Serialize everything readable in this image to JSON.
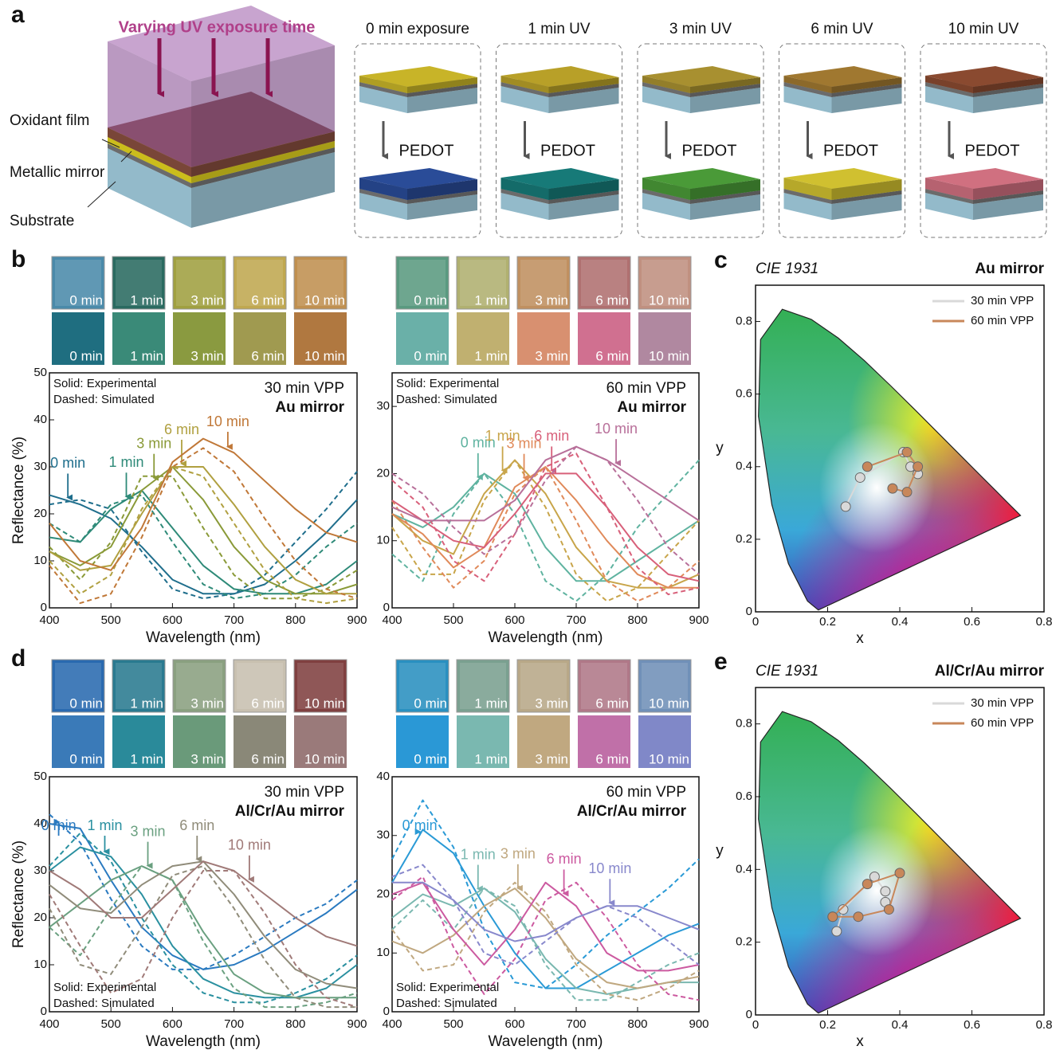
{
  "panel_labels": [
    "a",
    "b",
    "c",
    "d",
    "e"
  ],
  "schematic": {
    "uv_label": "Varying UV exposure time",
    "layer_labels": [
      "Oxidant film",
      "Metallic mirror",
      "Substrate"
    ],
    "steps": [
      {
        "title": "0 min exposure",
        "oxidant_color": "#c8b428",
        "product": "PEDOT",
        "product_color": "#2a4c98"
      },
      {
        "title": "1 min UV",
        "oxidant_color": "#b8a028",
        "product": "PEDOT",
        "product_color": "#177a78"
      },
      {
        "title": "3 min UV",
        "oxidant_color": "#a89030",
        "product": "PEDOT",
        "product_color": "#4a9a38"
      },
      {
        "title": "6 min UV",
        "oxidant_color": "#a07830",
        "product": "PEDOT",
        "product_color": "#d0c030"
      },
      {
        "title": "10 min UV",
        "oxidant_color": "#8a4a30",
        "product": "PEDOT",
        "product_color": "#d07080"
      }
    ]
  },
  "swatch_groups": [
    {
      "labels": [
        "0 min",
        "1 min",
        "3 min",
        "6 min",
        "10 min"
      ],
      "photo_colors": [
        "#4a8aaa",
        "#2a6a60",
        "#a0a040",
        "#c0a850",
        "#c09050"
      ],
      "sim_colors": [
        "#1f6e80",
        "#3a8a78",
        "#8a9a40",
        "#a09a50",
        "#b07840"
      ]
    },
    {
      "labels": [
        "0 min",
        "1 min",
        "3 min",
        "6 min",
        "10 min"
      ],
      "photo_colors": [
        "#5a9a80",
        "#b0b070",
        "#c09060",
        "#b07070",
        "#c09080"
      ],
      "sim_colors": [
        "#6ab0a8",
        "#c0b070",
        "#d89070",
        "#d07090",
        "#b088a0"
      ]
    },
    {
      "labels": [
        "0 min",
        "1 min",
        "3 min",
        "6 min",
        "10 min"
      ],
      "photo_colors": [
        "#2a6ab0",
        "#2a7a90",
        "#8aa080",
        "#c8c0b0",
        "#804040"
      ],
      "sim_colors": [
        "#3a7ab8",
        "#2a8a9a",
        "#6a9a7a",
        "#8a8878",
        "#9a7a7a"
      ]
    },
    {
      "labels": [
        "0 min",
        "1 min",
        "3 min",
        "6 min",
        "10 min"
      ],
      "photo_colors": [
        "#2a90c0",
        "#7aa090",
        "#b8a888",
        "#b07888",
        "#7090b8"
      ],
      "sim_colors": [
        "#2a98d6",
        "#7ab8b0",
        "#c0a880",
        "#c070a8",
        "#8088c8"
      ]
    }
  ],
  "chart_data": [
    {
      "type": "line",
      "title": "30 min VPP",
      "subtitle": "Au mirror",
      "notes": [
        "Solid: Experimental",
        "Dashed: Simulated"
      ],
      "xlabel": "Wavelength (nm)",
      "ylabel": "Reflectance (%)",
      "x": [
        400,
        450,
        500,
        550,
        600,
        650,
        700,
        750,
        800,
        850,
        900
      ],
      "xlim": [
        400,
        900
      ],
      "xticks": [
        400,
        500,
        600,
        700,
        800,
        900
      ],
      "ylim": [
        0,
        50
      ],
      "yticks": [
        0,
        10,
        20,
        30,
        40,
        50
      ],
      "series": [
        {
          "name": "0 min",
          "color": "#1f6e8c",
          "arrow_x": 430,
          "values": [
            24,
            22,
            19,
            13,
            6,
            3,
            3,
            5,
            10,
            16,
            23
          ],
          "simulated": [
            22,
            23,
            21,
            12,
            4,
            2,
            3,
            7,
            14,
            21,
            29
          ]
        },
        {
          "name": "1 min",
          "color": "#2e8a78",
          "arrow_x": 525,
          "values": [
            15,
            14,
            21,
            25,
            17,
            9,
            4,
            3,
            3,
            5,
            10
          ],
          "simulated": [
            18,
            14,
            22,
            24,
            14,
            5,
            2,
            3,
            7,
            13,
            18
          ]
        },
        {
          "name": "3 min",
          "color": "#8a9a38",
          "arrow_x": 570,
          "values": [
            12,
            9,
            13,
            25,
            30,
            23,
            13,
            6,
            3,
            3,
            5
          ],
          "simulated": [
            13,
            6,
            14,
            28,
            28,
            17,
            7,
            2,
            2,
            4,
            8
          ]
        },
        {
          "name": "6 min",
          "color": "#b0a040",
          "arrow_x": 615,
          "values": [
            12,
            8,
            9,
            20,
            30,
            30,
            22,
            13,
            6,
            3,
            3
          ],
          "simulated": [
            10,
            3,
            7,
            21,
            30,
            28,
            18,
            8,
            2,
            1,
            2
          ]
        },
        {
          "name": "10 min",
          "color": "#c07838",
          "arrow_x": 690,
          "values": [
            18,
            10,
            8,
            17,
            31,
            36,
            33,
            27,
            21,
            16,
            14
          ],
          "simulated": [
            9,
            1,
            3,
            15,
            30,
            34,
            29,
            19,
            10,
            4,
            2
          ]
        }
      ]
    },
    {
      "type": "line",
      "title": "60 min VPP",
      "subtitle": "Au mirror",
      "notes": [
        "Solid: Experimental",
        "Dashed: Simulated"
      ],
      "xlabel": "Wavelength (nm)",
      "x": [
        400,
        450,
        500,
        550,
        600,
        650,
        700,
        750,
        800,
        850,
        900
      ],
      "xlim": [
        400,
        900
      ],
      "xticks": [
        400,
        500,
        600,
        700,
        800,
        900
      ],
      "ylim": [
        0,
        35
      ],
      "yticks": [
        0,
        10,
        20,
        30
      ],
      "series": [
        {
          "name": "0 min",
          "color": "#5fb3a0",
          "arrow_x": 540,
          "values": [
            14,
            12,
            15,
            20,
            17,
            9,
            4,
            4,
            7,
            10,
            13
          ],
          "simulated": [
            8,
            4,
            14,
            20,
            14,
            4,
            1,
            5,
            12,
            17,
            22
          ]
        },
        {
          "name": "1 min",
          "color": "#c8a54a",
          "arrow_x": 580,
          "values": [
            14,
            10,
            8,
            17,
            22,
            17,
            9,
            4,
            3,
            3,
            5
          ],
          "simulated": [
            12,
            5,
            5,
            16,
            22,
            15,
            5,
            1,
            3,
            8,
            13
          ]
        },
        {
          "name": "3 min",
          "color": "#e08a5a",
          "arrow_x": 615,
          "values": [
            14,
            11,
            6,
            9,
            18,
            21,
            16,
            10,
            5,
            3,
            3
          ],
          "simulated": [
            16,
            9,
            3,
            7,
            17,
            21,
            13,
            4,
            1,
            3,
            7
          ]
        },
        {
          "name": "6 min",
          "color": "#d8607a",
          "arrow_x": 660,
          "values": [
            16,
            13,
            10,
            9,
            14,
            20,
            20,
            15,
            9,
            5,
            4
          ],
          "simulated": [
            19,
            15,
            7,
            4,
            11,
            21,
            23,
            15,
            6,
            2,
            3
          ]
        },
        {
          "name": "10 min",
          "color": "#b8709a",
          "arrow_x": 765,
          "values": [
            15,
            13,
            13,
            13,
            16,
            22,
            24,
            22,
            19,
            16,
            13
          ],
          "simulated": [
            20,
            17,
            12,
            8,
            11,
            19,
            24,
            22,
            16,
            9,
            5
          ]
        }
      ]
    },
    {
      "type": "line",
      "title": "30 min VPP",
      "subtitle": "Al/Cr/Au mirror",
      "notes": [
        "Solid: Experimental",
        "Dashed: Simulated"
      ],
      "xlabel": "Wavelength (nm)",
      "ylabel": "Reflectance (%)",
      "x": [
        400,
        450,
        500,
        550,
        600,
        650,
        700,
        750,
        800,
        850,
        900
      ],
      "xlim": [
        400,
        900
      ],
      "xticks": [
        400,
        500,
        600,
        700,
        800,
        900
      ],
      "ylim": [
        0,
        50
      ],
      "yticks": [
        0,
        10,
        20,
        30,
        40,
        50
      ],
      "series": [
        {
          "name": "0 min",
          "color": "#2a7ac0",
          "arrow_x": 415,
          "values": [
            40,
            39,
            28,
            18,
            12,
            9,
            10,
            13,
            17,
            21,
            26
          ],
          "simulated": [
            42,
            36,
            24,
            14,
            9,
            9,
            12,
            16,
            20,
            23,
            28
          ]
        },
        {
          "name": "1 min",
          "color": "#2a90a0",
          "arrow_x": 490,
          "values": [
            30,
            35,
            33,
            25,
            14,
            7,
            4,
            3,
            3,
            5,
            10
          ],
          "simulated": [
            31,
            38,
            32,
            20,
            10,
            4,
            2,
            2,
            4,
            7,
            12
          ]
        },
        {
          "name": "3 min",
          "color": "#6aa080",
          "arrow_x": 560,
          "values": [
            18,
            23,
            28,
            31,
            28,
            17,
            8,
            4,
            3,
            3,
            3
          ],
          "simulated": [
            18,
            12,
            22,
            31,
            28,
            15,
            5,
            1,
            1,
            2,
            4
          ]
        },
        {
          "name": "6 min",
          "color": "#908c7a",
          "arrow_x": 640,
          "values": [
            27,
            22,
            21,
            27,
            31,
            32,
            25,
            16,
            9,
            6,
            5
          ],
          "simulated": [
            22,
            10,
            8,
            18,
            29,
            31,
            22,
            11,
            3,
            1,
            1
          ]
        },
        {
          "name": "10 min",
          "color": "#a07a78",
          "arrow_x": 725,
          "values": [
            30,
            26,
            20,
            20,
            26,
            32,
            30,
            25,
            20,
            16,
            14
          ],
          "simulated": [
            25,
            14,
            4,
            7,
            20,
            30,
            30,
            21,
            10,
            3,
            1
          ]
        }
      ]
    },
    {
      "type": "line",
      "title": "60 min VPP",
      "subtitle": "Al/Cr/Au mirror",
      "notes": [
        "Solid: Experimental",
        "Dashed: Simulated"
      ],
      "xlabel": "Wavelength (nm)",
      "x": [
        400,
        450,
        500,
        550,
        600,
        650,
        700,
        750,
        800,
        850,
        900
      ],
      "xlim": [
        400,
        900
      ],
      "xticks": [
        400,
        500,
        600,
        700,
        800,
        900
      ],
      "ylim": [
        0,
        40
      ],
      "yticks": [
        0,
        10,
        20,
        30,
        40
      ],
      "series": [
        {
          "name": "0 min",
          "color": "#2a9ad6",
          "arrow_x": 445,
          "values": [
            22,
            31,
            27,
            18,
            10,
            4,
            4,
            7,
            10,
            13,
            15
          ],
          "simulated": [
            26,
            36,
            28,
            14,
            5,
            4,
            8,
            13,
            17,
            21,
            26
          ]
        },
        {
          "name": "1 min",
          "color": "#7ab8b0",
          "arrow_x": 540,
          "values": [
            16,
            20,
            18,
            21,
            17,
            9,
            4,
            3,
            4,
            5,
            5
          ],
          "simulated": [
            14,
            19,
            14,
            21,
            18,
            8,
            2,
            2,
            5,
            8,
            10
          ]
        },
        {
          "name": "3 min",
          "color": "#c0a880",
          "arrow_x": 605,
          "values": [
            12,
            10,
            13,
            18,
            21,
            16,
            9,
            5,
            4,
            5,
            6
          ],
          "simulated": [
            14,
            7,
            8,
            17,
            22,
            17,
            8,
            3,
            2,
            4,
            7
          ]
        },
        {
          "name": "6 min",
          "color": "#cc5aa0",
          "arrow_x": 680,
          "values": [
            20,
            22,
            14,
            8,
            14,
            22,
            18,
            10,
            7,
            7,
            8
          ],
          "simulated": [
            19,
            23,
            11,
            3,
            9,
            19,
            22,
            16,
            8,
            3,
            2
          ]
        },
        {
          "name": "10 min",
          "color": "#8888cc",
          "arrow_x": 755,
          "values": [
            22,
            22,
            19,
            14,
            12,
            13,
            16,
            18,
            18,
            16,
            14
          ],
          "simulated": [
            23,
            25,
            19,
            10,
            8,
            12,
            16,
            18,
            16,
            12,
            8
          ]
        }
      ]
    },
    {
      "type": "scatter",
      "title": "CIE 1931",
      "subtitle": "Au mirror",
      "xlabel": "x",
      "ylabel": "y",
      "xlim": [
        0,
        0.8
      ],
      "ylim": [
        0,
        0.9
      ],
      "xticks": [
        0,
        0.2,
        0.4,
        0.6,
        0.8
      ],
      "yticks": [
        0,
        0.2,
        0.4,
        0.6,
        0.8
      ],
      "legend": "upper right",
      "series": [
        {
          "name": "30 min VPP",
          "color": "#d9d9d9",
          "x": [
            0.25,
            0.29,
            0.41,
            0.43,
            0.45
          ],
          "y": [
            0.29,
            0.37,
            0.44,
            0.4,
            0.38
          ]
        },
        {
          "name": "60 min VPP",
          "color": "#c8875a",
          "x": [
            0.31,
            0.42,
            0.45,
            0.42,
            0.38
          ],
          "y": [
            0.4,
            0.44,
            0.4,
            0.33,
            0.34
          ]
        }
      ]
    },
    {
      "type": "scatter",
      "title": "CIE 1931",
      "subtitle": "Al/Cr/Au mirror",
      "xlabel": "x",
      "ylabel": "y",
      "xlim": [
        0,
        0.8
      ],
      "ylim": [
        0,
        0.9
      ],
      "xticks": [
        0,
        0.2,
        0.4,
        0.6,
        0.8
      ],
      "yticks": [
        0,
        0.2,
        0.4,
        0.6,
        0.8
      ],
      "legend": "upper right",
      "series": [
        {
          "name": "30 min VPP",
          "color": "#d9d9d9",
          "x": [
            0.225,
            0.243,
            0.33,
            0.36,
            0.36
          ],
          "y": [
            0.23,
            0.29,
            0.38,
            0.34,
            0.31
          ]
        },
        {
          "name": "60 min VPP",
          "color": "#c8875a",
          "x": [
            0.214,
            0.31,
            0.4,
            0.37,
            0.285,
            0.214
          ],
          "y": [
            0.27,
            0.36,
            0.39,
            0.29,
            0.27,
            0.27
          ]
        }
      ]
    }
  ]
}
